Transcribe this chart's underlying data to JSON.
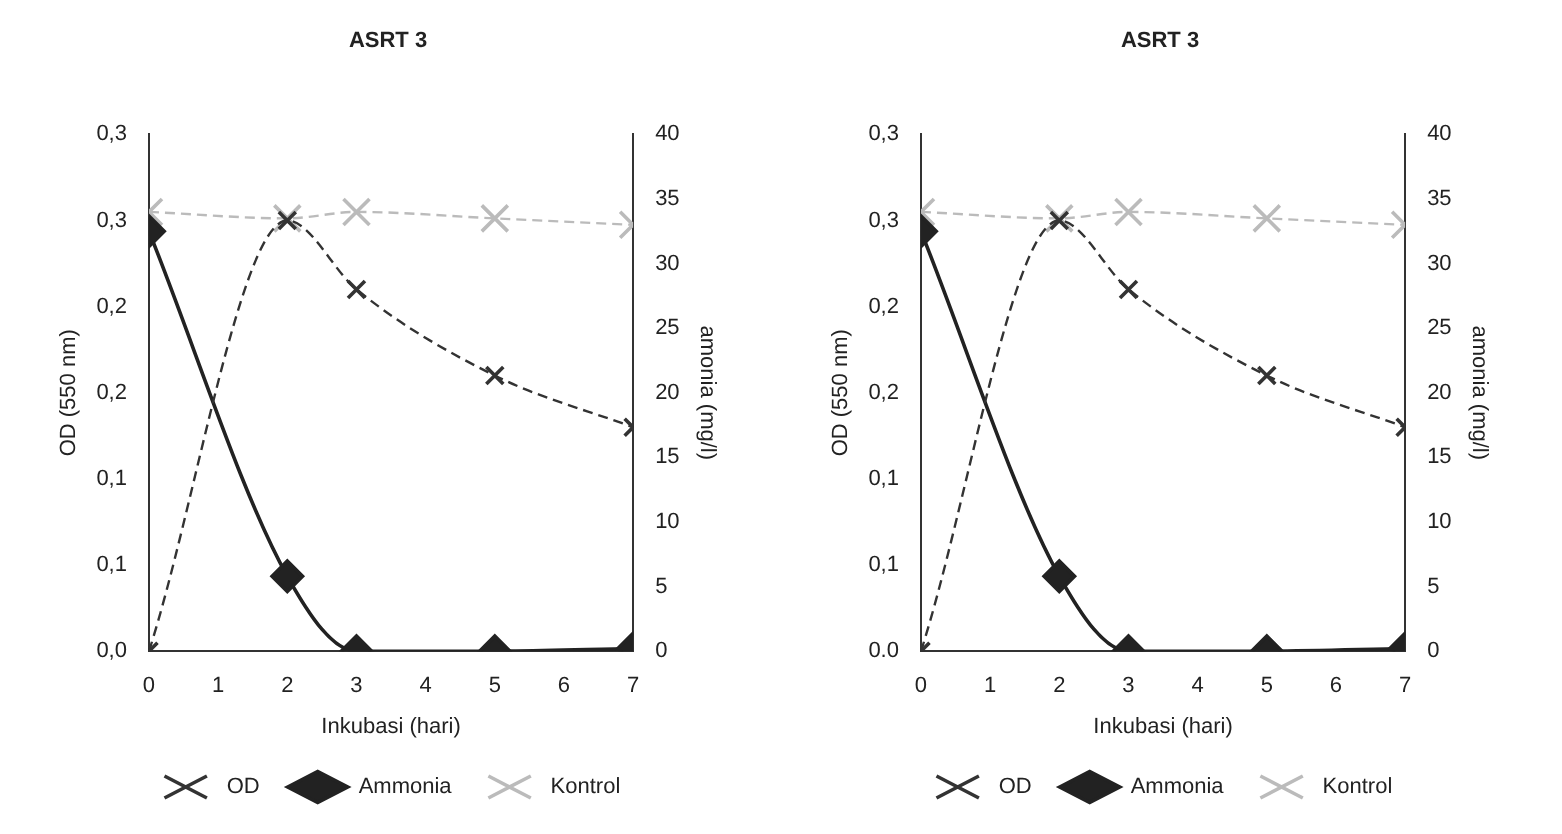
{
  "chart_data": [
    {
      "type": "line",
      "title": "ASRT 3",
      "xlabel": "Inkubasi (hari)",
      "ylabel": "OD (550 nm)",
      "y2label": "amonia (mg/l)",
      "xlim": [
        0,
        7
      ],
      "xticks": [
        0,
        1,
        2,
        3,
        4,
        5,
        6,
        7
      ],
      "ylim": [
        0,
        0.3
      ],
      "yticks": [
        {
          "value": 0,
          "label": "0,0"
        },
        {
          "value": 0.05,
          "label": "0,1"
        },
        {
          "value": 0.1,
          "label": "0,1"
        },
        {
          "value": 0.15,
          "label": "0,2"
        },
        {
          "value": 0.2,
          "label": "0,2"
        },
        {
          "value": 0.25,
          "label": "0,3"
        },
        {
          "value": 0.3,
          "label": "0,3"
        }
      ],
      "y2lim": [
        0,
        40
      ],
      "y2ticks": [
        0,
        5,
        10,
        15,
        20,
        25,
        30,
        35,
        40
      ],
      "grid": false,
      "legend": "bottom",
      "x": [
        0,
        2,
        3,
        5,
        7
      ],
      "series": [
        {
          "name": "OD",
          "color": "#333333",
          "values": [
            0,
            0.25,
            0.21,
            0.16,
            0.13
          ],
          "marker": "cross",
          "line_style": "dashed"
        },
        {
          "name": "Ammonia",
          "color": "#222222",
          "values": [
            32.5,
            5.8,
            0,
            0,
            0.2
          ],
          "axis": "y2",
          "marker": "diamond",
          "line_style": "solid"
        },
        {
          "name": "Kontrol",
          "color": "#bbbbbb",
          "values": [
            34,
            33.5,
            34,
            33.5,
            33
          ],
          "axis": "y2",
          "marker": "cross",
          "line_style": "dashed"
        }
      ]
    },
    {
      "type": "line",
      "title": "ASRT 3",
      "xlabel": "Inkubasi (hari)",
      "ylabel": "OD (550 nm)",
      "y2label": "amonia (mg/l)",
      "xlim": [
        0,
        7
      ],
      "xticks": [
        0,
        1,
        2,
        3,
        4,
        5,
        6,
        7
      ],
      "ylim": [
        0,
        0.3
      ],
      "yticks": [
        {
          "value": 0,
          "label": "0.0"
        },
        {
          "value": 0.05,
          "label": "0,1"
        },
        {
          "value": 0.1,
          "label": "0,1"
        },
        {
          "value": 0.15,
          "label": "0,2"
        },
        {
          "value": 0.2,
          "label": "0,2"
        },
        {
          "value": 0.25,
          "label": "0,3"
        },
        {
          "value": 0.3,
          "label": "0,3"
        }
      ],
      "y2lim": [
        0,
        40
      ],
      "y2ticks": [
        0,
        5,
        10,
        15,
        20,
        25,
        30,
        35,
        40
      ],
      "grid": false,
      "legend": "bottom",
      "x": [
        0,
        2,
        3,
        5,
        7
      ],
      "series": [
        {
          "name": "OD",
          "color": "#333333",
          "values": [
            0,
            0.25,
            0.21,
            0.16,
            0.13
          ],
          "marker": "cross",
          "line_style": "dashed"
        },
        {
          "name": "Ammonia",
          "color": "#222222",
          "values": [
            32.5,
            5.8,
            0,
            0,
            0.2
          ],
          "axis": "y2",
          "marker": "diamond",
          "line_style": "solid"
        },
        {
          "name": "Kontrol",
          "color": "#bbbbbb",
          "values": [
            34,
            33.5,
            34,
            33.5,
            33
          ],
          "axis": "y2",
          "marker": "cross",
          "line_style": "dashed"
        }
      ]
    }
  ]
}
